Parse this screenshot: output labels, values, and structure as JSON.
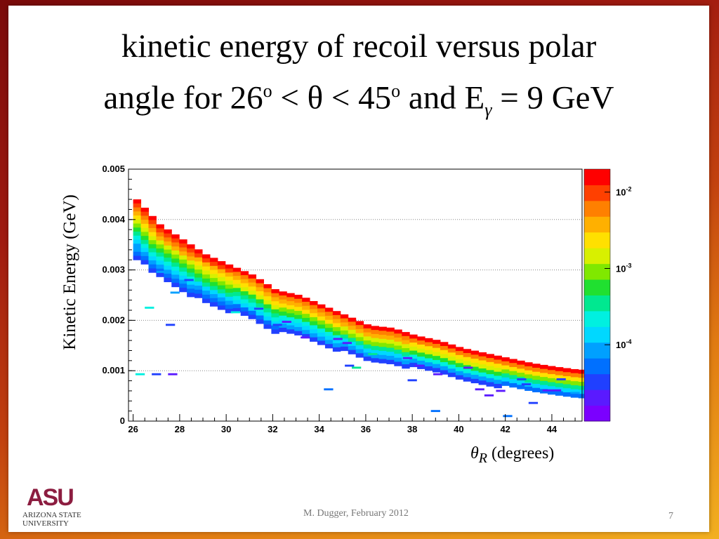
{
  "slide": {
    "title_part1": "kinetic energy of recoil versus polar",
    "title_part2_a": "angle for 26",
    "title_sup1": "o",
    "title_part2_b": " < θ < 45",
    "title_sup2": "o",
    "title_part2_c": " and E",
    "title_sub": "γ",
    "title_part2_d": " = 9 GeV",
    "footer": "M. Dugger, February 2012",
    "page_number": "7",
    "logo_mark": "ASU",
    "logo_line1": "Arizona State",
    "logo_line2": "University",
    "colors": {
      "frame_dark": "#7a0a0a",
      "frame_orange": "#e07a12",
      "asu_maroon": "#8c1d40"
    }
  },
  "chart_data": {
    "type": "heatmap",
    "ylabel": "Kinetic Energy (GeV)",
    "xlabel_symbol": "θ",
    "xlabel_sub": "R",
    "xlabel_unit": " (degrees)",
    "xlim": [
      25.8,
      45.3
    ],
    "ylim": [
      0,
      0.005
    ],
    "xticks": [
      "26",
      "28",
      "30",
      "32",
      "34",
      "36",
      "38",
      "40",
      "42",
      "44"
    ],
    "yticks": [
      "0",
      "0.001",
      "0.002",
      "0.003",
      "0.004",
      "0.005"
    ],
    "color_scale": "log",
    "zlim": [
      1e-05,
      0.02
    ],
    "colorbar_labels": [
      {
        "base": "10",
        "exp": "-2",
        "value": 0.01
      },
      {
        "base": "10",
        "exp": "-3",
        "value": 0.001
      },
      {
        "base": "10",
        "exp": "-4",
        "value": 0.0001
      }
    ],
    "grid": "horizontal dotted",
    "band": {
      "description_points_x": [
        26.0,
        27.0,
        28.0,
        29.0,
        30.0,
        31.0,
        32.0,
        33.0,
        34.0,
        35.0,
        36.0,
        37.0,
        38.0,
        39.0,
        40.0,
        41.0,
        42.0,
        43.0,
        44.0,
        45.0
      ],
      "upper_edge_kev": [
        0.0044,
        0.0039,
        0.0036,
        0.0033,
        0.0031,
        0.0029,
        0.0026,
        0.0025,
        0.0023,
        0.0021,
        0.0019,
        0.00185,
        0.0017,
        0.0016,
        0.00145,
        0.00135,
        0.00125,
        0.00115,
        0.00108,
        0.00102
      ]
    },
    "scatter_bins": [
      {
        "x": 26.1,
        "y": 0.00095,
        "z": 0.00025
      },
      {
        "x": 26.8,
        "y": 0.00095,
        "z": 3e-05
      },
      {
        "x": 27.5,
        "y": 0.00095,
        "z": 2e-05
      },
      {
        "x": 26.5,
        "y": 0.00227,
        "z": 0.0002
      },
      {
        "x": 27.4,
        "y": 0.00193,
        "z": 3e-05
      },
      {
        "x": 27.0,
        "y": 0.00298,
        "z": 0.0001
      },
      {
        "x": 27.6,
        "y": 0.00257,
        "z": 0.0001
      },
      {
        "x": 28.2,
        "y": 0.00282,
        "z": 3e-05
      },
      {
        "x": 30.0,
        "y": 0.00222,
        "z": 3e-05
      },
      {
        "x": 30.2,
        "y": 0.00218,
        "z": 0.0002
      },
      {
        "x": 31.2,
        "y": 0.00225,
        "z": 3e-05
      },
      {
        "x": 32.0,
        "y": 0.00193,
        "z": 3e-05
      },
      {
        "x": 32.4,
        "y": 0.00199,
        "z": 2e-05
      },
      {
        "x": 33.2,
        "y": 0.00168,
        "z": 2e-05
      },
      {
        "x": 34.2,
        "y": 0.00065,
        "z": 6e-05
      },
      {
        "x": 34.6,
        "y": 0.00165,
        "z": 2e-05
      },
      {
        "x": 35.0,
        "y": 0.00157,
        "z": 2e-05
      },
      {
        "x": 35.1,
        "y": 0.00112,
        "z": 4e-05
      },
      {
        "x": 35.4,
        "y": 0.00108,
        "z": 0.0003
      },
      {
        "x": 36.1,
        "y": 0.00135,
        "z": 0.0003
      },
      {
        "x": 37.6,
        "y": 0.00127,
        "z": 2e-05
      },
      {
        "x": 37.8,
        "y": 0.00083,
        "z": 4e-05
      },
      {
        "x": 38.1,
        "y": 0.00112,
        "z": 2e-05
      },
      {
        "x": 38.8,
        "y": 0.00022,
        "z": 5e-05
      },
      {
        "x": 38.9,
        "y": 0.00095,
        "z": 2e-05
      },
      {
        "x": 40.2,
        "y": 0.00108,
        "z": 2e-05
      },
      {
        "x": 40.7,
        "y": 0.00065,
        "z": 2e-05
      },
      {
        "x": 41.1,
        "y": 0.00053,
        "z": 2e-05
      },
      {
        "x": 41.6,
        "y": 0.00062,
        "z": 2e-05
      },
      {
        "x": 41.9,
        "y": 0.00012,
        "z": 5e-05
      },
      {
        "x": 42.5,
        "y": 0.00085,
        "z": 4e-05
      },
      {
        "x": 42.7,
        "y": 0.00075,
        "z": 4e-05
      },
      {
        "x": 43.0,
        "y": 0.00038,
        "z": 4e-05
      },
      {
        "x": 43.6,
        "y": 0.00063,
        "z": 2e-05
      },
      {
        "x": 44.0,
        "y": 0.00063,
        "z": 2e-05
      },
      {
        "x": 44.2,
        "y": 0.00085,
        "z": 4e-05
      },
      {
        "x": 44.8,
        "y": 0.00058,
        "z": 0.0001
      }
    ]
  }
}
